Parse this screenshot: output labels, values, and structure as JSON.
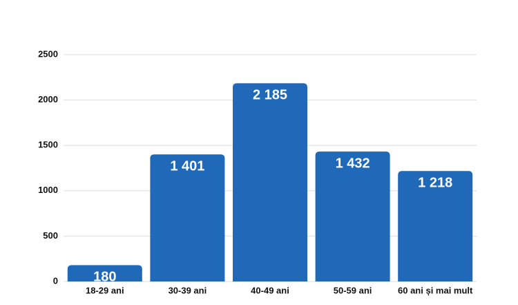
{
  "chart_data": {
    "type": "bar",
    "categories": [
      "18-29 ani",
      "30-39 ani",
      "40-49 ani",
      "50-59 ani",
      "60 ani și mai mult"
    ],
    "values": [
      180,
      1401,
      2185,
      1432,
      1218
    ],
    "value_labels": [
      "180",
      "1 401",
      "2 185",
      "1 432",
      "1 218"
    ],
    "color": "#2068b8",
    "ylim": [
      0,
      2500
    ],
    "yticks": [
      0,
      500,
      1000,
      1500,
      2000,
      2500
    ],
    "grid": true
  }
}
